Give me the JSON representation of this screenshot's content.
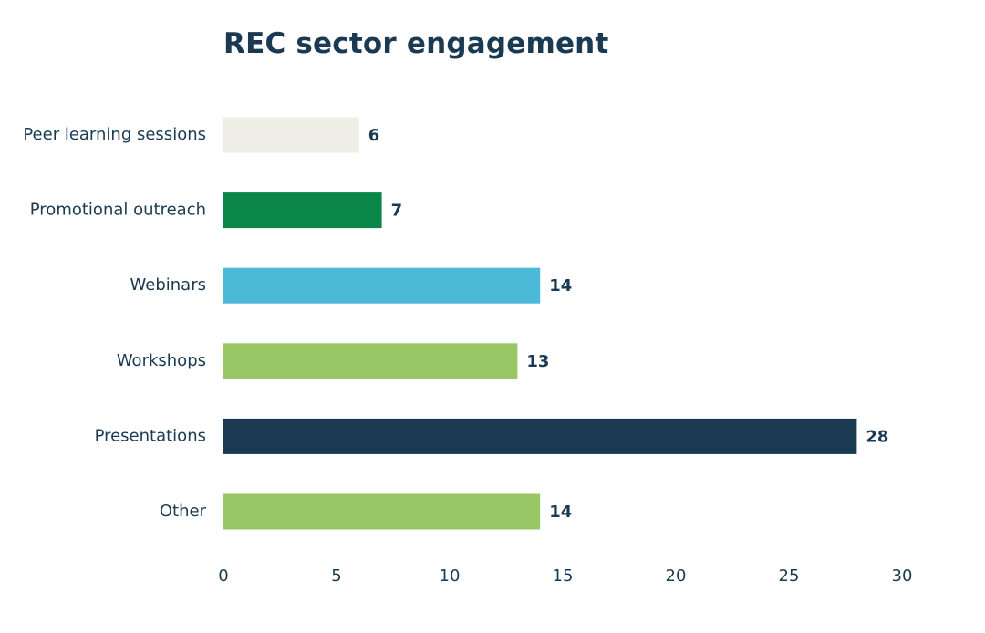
{
  "chart_data": {
    "type": "bar",
    "orientation": "horizontal",
    "title": "REC sector engagement",
    "categories": [
      "Peer learning sessions",
      "Promotional outreach",
      "Webinars",
      "Workshops",
      "Presentations",
      "Other"
    ],
    "values": [
      6,
      7,
      14,
      13,
      28,
      14
    ],
    "colors": [
      "#eeeee7",
      "#0b8649",
      "#4bb9d8",
      "#99c766",
      "#1a3a52",
      "#99c766"
    ],
    "xlim": [
      0,
      30
    ],
    "xticks": [
      "0",
      "5",
      "10",
      "15",
      "20",
      "25",
      "30"
    ],
    "xlabel": "",
    "ylabel": "",
    "grid": false,
    "legend": "none",
    "data_labels": true
  },
  "colors": {
    "text": "#1a3a52"
  }
}
